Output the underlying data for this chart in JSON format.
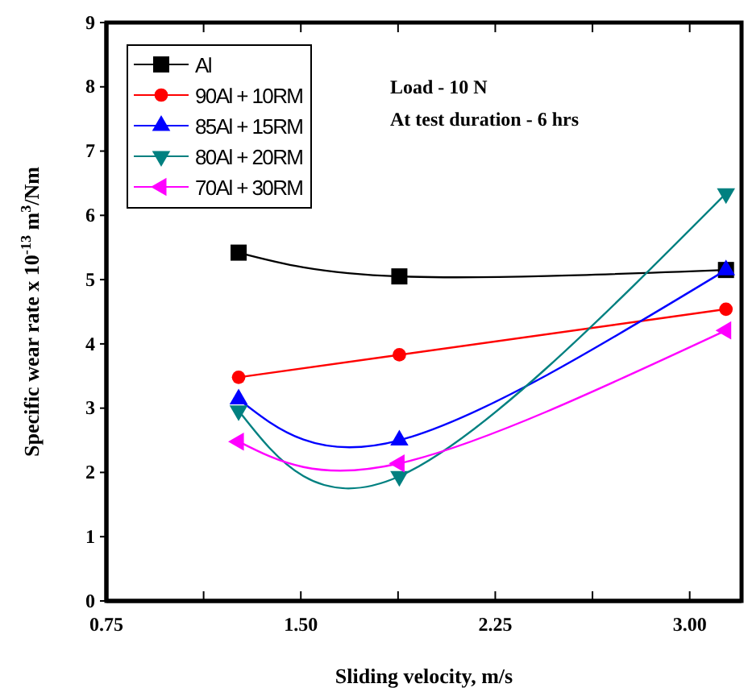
{
  "chart_data": {
    "type": "line",
    "xlabel": "Sliding velocity, m/s",
    "ylabel": "Specific wear rate x 10$^{-13}$ m$^{3}$/Nm",
    "x": [
      1.26,
      1.88,
      3.14
    ],
    "series": [
      {
        "name": "Al",
        "color": "#000000",
        "marker": "square",
        "values": [
          5.42,
          5.05,
          5.15
        ]
      },
      {
        "name": "90Al + 10RM",
        "color": "#ff0000",
        "marker": "circle",
        "values": [
          3.48,
          3.83,
          4.54
        ]
      },
      {
        "name": "85Al + 15RM",
        "color": "#0000ff",
        "marker": "triangle",
        "values": [
          3.14,
          2.5,
          5.15
        ]
      },
      {
        "name": "80Al + 20RM",
        "color": "#008080",
        "marker": "triangle-down",
        "values": [
          2.96,
          1.94,
          6.34
        ]
      },
      {
        "name": "70Al + 30RM",
        "color": "#ff00ff",
        "marker": "triangle-left",
        "values": [
          2.48,
          2.14,
          4.21
        ]
      }
    ],
    "xlim": [
      0.75,
      3.2
    ],
    "xticks": [
      {
        "value": 0.75,
        "label": "0.75"
      },
      {
        "value": 1.125,
        "label": null
      },
      {
        "value": 1.5,
        "label": "1.50"
      },
      {
        "value": 1.875,
        "label": null
      },
      {
        "value": 2.25,
        "label": "2.25"
      },
      {
        "value": 2.625,
        "label": null
      },
      {
        "value": 3,
        "label": "3.00"
      }
    ],
    "ylim": [
      0,
      9
    ],
    "yticks": [
      0,
      1,
      2,
      3,
      4,
      5,
      6,
      7,
      8,
      9
    ],
    "annotations": [
      "Load - 10 N",
      "At test duration - 6 hrs"
    ],
    "legend": "top left",
    "grid": false
  }
}
